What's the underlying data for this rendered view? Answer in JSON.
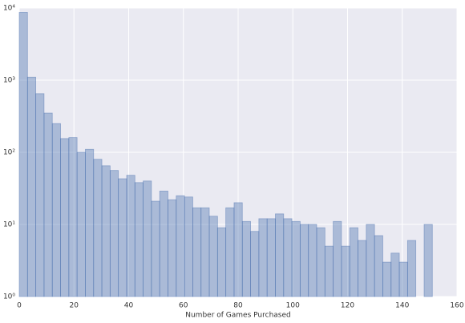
{
  "chart_data": {
    "type": "histogram",
    "xlabel": "Number of Games Purchased",
    "bins": [
      0,
      3.02,
      6.04,
      9.06,
      12.08,
      15.1,
      18.12,
      21.14,
      24.16,
      27.18,
      30.2,
      33.22,
      36.24,
      39.26,
      42.28,
      45.3,
      48.32,
      51.34,
      54.36,
      57.38,
      60.4,
      63.42,
      66.44,
      69.46,
      72.48,
      75.5,
      78.52,
      81.54,
      84.56,
      87.58,
      90.6,
      93.62,
      96.64,
      99.66,
      102.68,
      105.7,
      108.72,
      111.74,
      114.76,
      117.78,
      120.8,
      123.82,
      126.84,
      129.86,
      132.88,
      135.9,
      138.92,
      141.94,
      144.96,
      147.98,
      151.0
    ],
    "values": [
      8700,
      1100,
      650,
      350,
      250,
      155,
      160,
      100,
      110,
      80,
      65,
      56,
      43,
      48,
      38,
      40,
      21,
      29,
      22,
      25,
      24,
      17,
      17,
      13,
      9,
      17,
      20,
      11,
      8,
      12,
      12,
      14,
      12,
      11,
      10,
      10,
      9,
      5,
      11,
      5,
      9,
      6,
      10,
      7,
      3,
      4,
      3,
      6,
      0,
      10
    ],
    "color": "#4c72b0",
    "xlim": [
      0,
      160
    ],
    "xticks": [
      0,
      20,
      40,
      60,
      80,
      100,
      120,
      140,
      160
    ],
    "ylim": [
      1,
      10000
    ],
    "log_y": true,
    "yticks": [
      {
        "value": 1,
        "label": "10⁰"
      },
      {
        "value": 10,
        "label": "10¹"
      },
      {
        "value": 100,
        "label": "10²"
      },
      {
        "value": 1000,
        "label": "10³"
      },
      {
        "value": 10000,
        "label": "10⁴"
      }
    ],
    "grid": true
  }
}
